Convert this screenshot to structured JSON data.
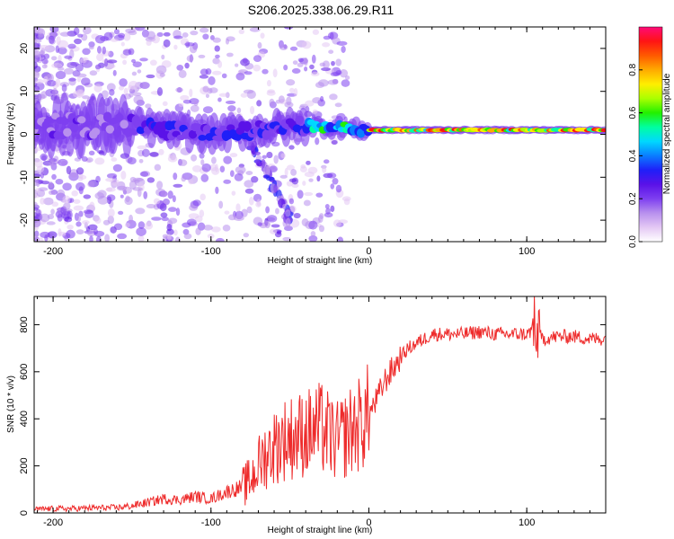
{
  "title": "S206.2025.338.06.29.R11",
  "chart_data": [
    {
      "type": "heatmap",
      "name": "spectrogram",
      "xlabel": "Height of straight line (km)",
      "ylabel": "Frequency (Hz)",
      "xlim": [
        -212,
        150
      ],
      "ylim": [
        -25,
        25
      ],
      "xticks": [
        -200,
        -100,
        0,
        100
      ],
      "yticks": [
        -20,
        -10,
        0,
        10,
        20
      ],
      "colorbar": {
        "label": "Normalized spectral amplitude",
        "range": [
          0,
          1
        ],
        "ticks": [
          0.0,
          0.2,
          0.4,
          0.6,
          0.8
        ],
        "colors": [
          "#ffffff",
          "#e4c8f4",
          "#b890ee",
          "#7e3ff0",
          "#5a12e8",
          "#1f1ff8",
          "#0a7dff",
          "#00d8ff",
          "#00ffa0",
          "#22f000",
          "#aaff00",
          "#ffee00",
          "#ffaa00",
          "#ff5a00",
          "#ff1414",
          "#ff0a78"
        ]
      },
      "ridge_segments": [
        {
          "x": [
            -212,
            -150
          ],
          "freq": [
            2,
            2
          ],
          "amplitude": 0.2,
          "spread": 8
        },
        {
          "x": [
            -150,
            -100
          ],
          "freq": [
            2,
            0
          ],
          "amplitude": 0.3,
          "spread": 5
        },
        {
          "x": [
            -100,
            -40
          ],
          "freq": [
            0,
            2
          ],
          "amplitude": 0.3,
          "spread": 5
        },
        {
          "x": [
            -40,
            0
          ],
          "freq": [
            2,
            1
          ],
          "amplitude": 0.5,
          "spread": 3
        },
        {
          "x": [
            0,
            150
          ],
          "freq": [
            1,
            1
          ],
          "amplitude": 0.8,
          "spread": 1
        }
      ]
    },
    {
      "type": "line",
      "name": "snr",
      "xlabel": "Height of straight line (km)",
      "ylabel": "SNR (10 * v/v)",
      "xlim": [
        -212,
        150
      ],
      "ylim": [
        0,
        920
      ],
      "xticks": [
        -200,
        -100,
        0,
        100
      ],
      "yticks": [
        0,
        200,
        400,
        600,
        800
      ],
      "color": "#ee2b2b",
      "series": [
        {
          "name": "SNR",
          "x": [
            -212,
            -200,
            -190,
            -180,
            -170,
            -160,
            -150,
            -140,
            -130,
            -120,
            -110,
            -100,
            -90,
            -80,
            -75,
            -70,
            -65,
            -60,
            -55,
            -50,
            -45,
            -40,
            -35,
            -30,
            -25,
            -20,
            -15,
            -10,
            -5,
            0,
            5,
            10,
            15,
            20,
            25,
            30,
            35,
            40,
            50,
            60,
            70,
            80,
            90,
            100,
            105,
            110,
            120,
            130,
            140,
            150
          ],
          "values": [
            15,
            18,
            18,
            20,
            22,
            22,
            30,
            45,
            60,
            55,
            70,
            60,
            90,
            110,
            140,
            200,
            250,
            280,
            310,
            320,
            330,
            340,
            350,
            360,
            330,
            300,
            330,
            360,
            380,
            420,
            480,
            560,
            610,
            660,
            700,
            720,
            740,
            760,
            760,
            760,
            770,
            760,
            760,
            760,
            780,
            740,
            750,
            750,
            740,
            740
          ]
        }
      ]
    }
  ]
}
